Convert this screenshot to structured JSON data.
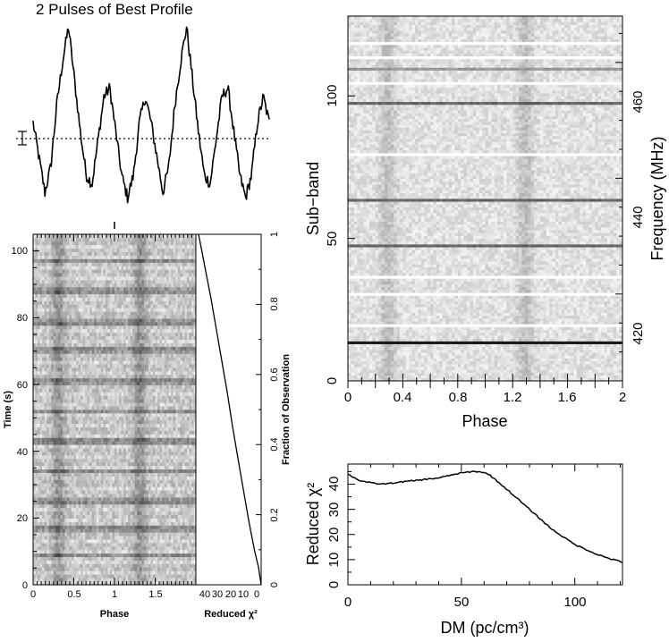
{
  "chart_data": [
    {
      "type": "line",
      "name": "profile",
      "title": "2 Pulses of Best Profile",
      "x_range": [
        0,
        2
      ],
      "baseline": "dotted",
      "description_of_series": "two identical pulse periods",
      "x": [
        0.0,
        0.05,
        0.1,
        0.15,
        0.2,
        0.25,
        0.3,
        0.35,
        0.4,
        0.45,
        0.5,
        0.55,
        0.6,
        0.65,
        0.7,
        0.75,
        0.8,
        0.85,
        0.9,
        0.95,
        1.0
      ],
      "values": [
        0.45,
        0.25,
        0.05,
        0.2,
        0.55,
        0.8,
        1.0,
        0.7,
        0.4,
        0.15,
        0.1,
        0.35,
        0.6,
        0.65,
        0.4,
        0.15,
        0.02,
        0.15,
        0.45,
        0.6,
        0.45
      ]
    },
    {
      "type": "heatmap",
      "name": "time-phase",
      "xlabel": "Phase",
      "ylabel": "Time (s)",
      "xlim": [
        0,
        2
      ],
      "ylim": [
        0,
        105
      ],
      "x_ticks": [
        "0",
        "0.5",
        "1",
        "1.5"
      ],
      "y_ticks": [
        "0",
        "20",
        "40",
        "60",
        "80",
        "100"
      ],
      "bright_rows_s": [
        9,
        17,
        25,
        34,
        43,
        52,
        61,
        70,
        79,
        88,
        97
      ],
      "pulse_phases": [
        0.3,
        1.3
      ]
    },
    {
      "type": "line",
      "name": "reduced-chi2-vs-time",
      "xlabel": "Reduced χ²",
      "ylabel": "Fraction of Observation",
      "x_ticks": [
        "40",
        "30",
        "20",
        "10",
        "0"
      ],
      "y_ticks": [
        "0",
        "0.2",
        "0.4",
        "0.6",
        "0.8",
        "1"
      ],
      "x_reversed": true,
      "xlim": [
        0,
        48
      ],
      "ylim": [
        0,
        1
      ],
      "x": [
        0,
        2,
        5,
        9,
        13,
        17,
        21,
        25,
        29,
        33,
        37,
        41,
        44,
        46
      ],
      "y": [
        0,
        0.05,
        0.1,
        0.18,
        0.27,
        0.36,
        0.45,
        0.55,
        0.64,
        0.73,
        0.82,
        0.9,
        0.96,
        1.0
      ]
    },
    {
      "type": "heatmap",
      "name": "subband-phase",
      "xlabel": "Phase",
      "ylabel": "Sub−band",
      "ylabel_right": "Frequency (MHz)",
      "xlim": [
        0,
        2
      ],
      "ylim": [
        0,
        128
      ],
      "x_ticks": [
        "0",
        "0.4",
        "0.8",
        "1.2",
        "1.6",
        "2"
      ],
      "y_ticks": [
        "0",
        "50",
        "100"
      ],
      "y_ticks_right": [
        "420",
        "440",
        "460"
      ],
      "freq_range_mhz": [
        405,
        468
      ],
      "dark_channels": [
        13,
        47,
        63,
        97,
        109
      ],
      "white_channels": [
        19,
        30,
        36,
        79,
        104,
        113,
        118
      ],
      "pulse_phases": [
        0.28,
        1.28
      ]
    },
    {
      "type": "line",
      "name": "reduced-chi2-vs-dm",
      "xlabel": "DM (pc/cm³)",
      "ylabel": "Reduced χ²",
      "xlim": [
        0,
        121
      ],
      "ylim": [
        0,
        48
      ],
      "x_ticks": [
        "0",
        "50",
        "100"
      ],
      "y_ticks": [
        "0",
        "10",
        "20",
        "30",
        "40"
      ],
      "x": [
        0,
        5,
        10,
        15,
        20,
        30,
        40,
        50,
        55,
        58,
        62,
        70,
        80,
        90,
        100,
        110,
        115,
        121
      ],
      "y": [
        44,
        41.5,
        40.5,
        40,
        40.5,
        41.5,
        42.5,
        44.5,
        45,
        45,
        44,
        38,
        30,
        22,
        16,
        12,
        10.5,
        9
      ]
    }
  ]
}
